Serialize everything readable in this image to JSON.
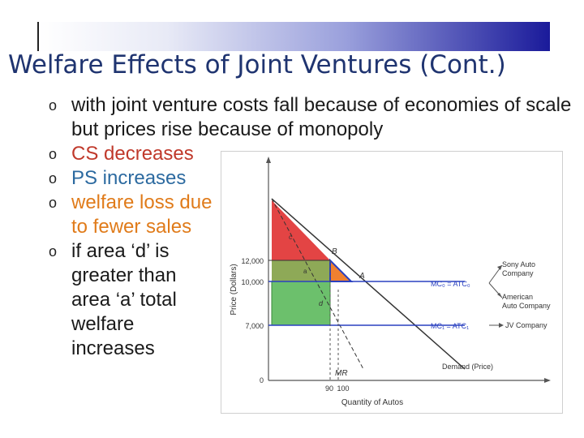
{
  "title": "Welfare Effects of Joint Ventures (Cont.)",
  "bullets": [
    {
      "text": "with joint venture costs fall because of economies of scale but prices rise because of monopoly"
    },
    {
      "text": "CS decreases"
    },
    {
      "text": "PS increases"
    },
    {
      "text": "welfare loss due to fewer sales"
    },
    {
      "text": "if area ‘d’ is greater than area ‘a’ total welfare increases"
    }
  ],
  "diagram": {
    "y_axis_label": "Price (Dollars)",
    "x_axis_label": "Quantity of Autos",
    "y_ticks": [
      "12,000",
      "10,000",
      "7,000",
      "0"
    ],
    "x_ticks": [
      "90",
      "100"
    ],
    "point_B": "B",
    "point_A": "A",
    "area_c": "c",
    "area_a": "a",
    "area_d": "d",
    "mr_label": "MR",
    "demand_label": "Demand (Price)",
    "mc0_label": "MC₀ = ATC₀",
    "mc1_label": "MC₁ = ATC₁",
    "sony_label": "Sony Auto Company",
    "american_label": "American Auto Company",
    "jv_label": "JV Company",
    "colors": {
      "cs_red": "#e03030",
      "ps_green": "#6cc06c",
      "loss_orange": "#f08030",
      "blue": "#2a40c0"
    }
  }
}
